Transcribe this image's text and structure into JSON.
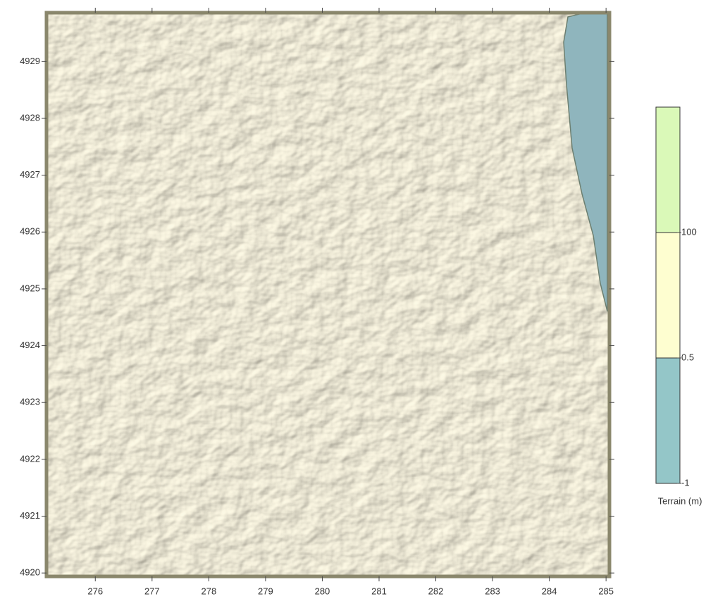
{
  "chart_data": {
    "type": "raster",
    "xlim": [
      275.14,
      285.06
    ],
    "xticks": [
      276,
      277,
      278,
      279,
      280,
      281,
      282,
      283,
      284,
      285
    ],
    "ylim": [
      4919.94,
      4929.86
    ],
    "yticks": [
      4920,
      4921,
      4922,
      4923,
      4924,
      4925,
      4926,
      4927,
      4928,
      4929
    ],
    "colorbar": {
      "label": "Terrain (m)",
      "levels": [
        -1,
        0.5,
        100
      ],
      "colors": [
        "#94c6c8",
        "#fefed0",
        "#daf9b8"
      ]
    }
  }
}
